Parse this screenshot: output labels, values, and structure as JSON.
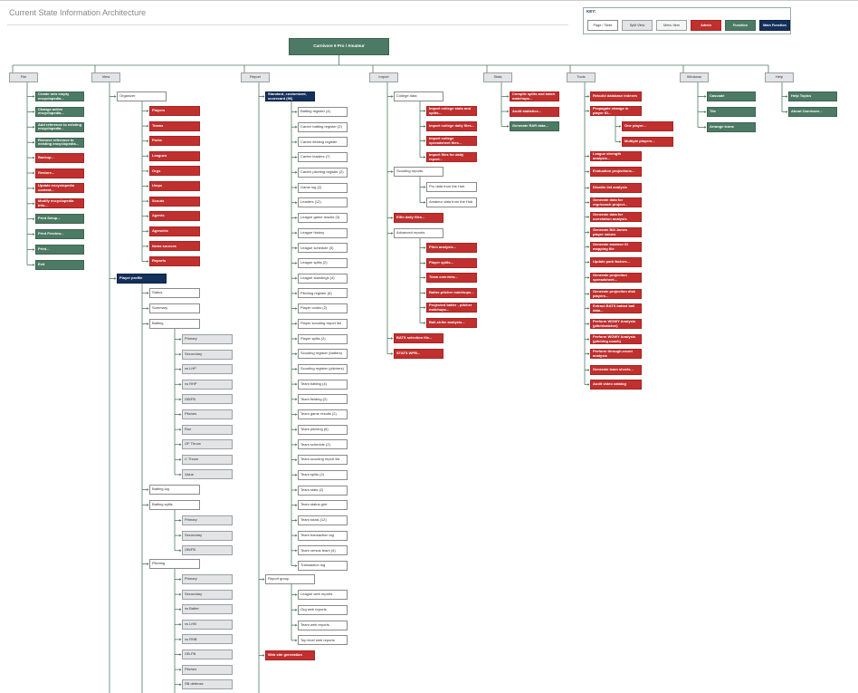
{
  "page": {
    "title": "Current State Information Architecture"
  },
  "legend": {
    "title": "KEY:",
    "items": [
      {
        "label": "Page / Table",
        "kind": "white"
      },
      {
        "label": "Split View",
        "kind": "grey"
      },
      {
        "label": "Menu Item",
        "kind": "grey"
      },
      {
        "label": "Admin",
        "kind": "red"
      },
      {
        "label": "Function",
        "kind": "green"
      },
      {
        "label": "Main Function",
        "kind": "navy"
      }
    ]
  },
  "root": {
    "label": "Carnivore 6 Pro / Amateur"
  },
  "menus": [
    {
      "label": "File",
      "items": [
        {
          "label": "Create new empty encyclopedia...",
          "kind": "green"
        },
        {
          "label": "Change active encyclopedia...",
          "kind": "green"
        },
        {
          "label": "Add reference to existing encyclopedia...",
          "kind": "green"
        },
        {
          "label": "Remove reference to existing encyclopedia...",
          "kind": "green"
        },
        {
          "label": "Backup...",
          "kind": "red"
        },
        {
          "label": "Restore...",
          "kind": "red"
        },
        {
          "label": "Update encyclopedia content...",
          "kind": "red"
        },
        {
          "label": "Modify encyclopedia info...",
          "kind": "red"
        },
        {
          "label": "Print Setup...",
          "kind": "green"
        },
        {
          "label": "Print Preview...",
          "kind": "green"
        },
        {
          "label": "Print...",
          "kind": "green"
        },
        {
          "label": "Exit",
          "kind": "green"
        }
      ]
    },
    {
      "label": "View",
      "items": [
        {
          "label": "Organizer",
          "kind": "white",
          "children": [
            {
              "label": "Players",
              "kind": "red"
            },
            {
              "label": "Teams",
              "kind": "red"
            },
            {
              "label": "Parks",
              "kind": "red"
            },
            {
              "label": "Leagues",
              "kind": "red"
            },
            {
              "label": "Orgs",
              "kind": "red"
            },
            {
              "label": "Umps",
              "kind": "red"
            },
            {
              "label": "Scouts",
              "kind": "red"
            },
            {
              "label": "Agents",
              "kind": "red"
            },
            {
              "label": "Agencies",
              "kind": "red"
            },
            {
              "label": "News sources",
              "kind": "red"
            },
            {
              "label": "Reports",
              "kind": "red"
            }
          ]
        },
        {
          "label": "Player profile",
          "kind": "navy",
          "children": [
            {
              "label": "Status",
              "kind": "white"
            },
            {
              "label": "Summary",
              "kind": "white"
            },
            {
              "label": "Batting",
              "kind": "white",
              "children": [
                {
                  "label": "Primary",
                  "kind": "grey"
                },
                {
                  "label": "Secondary",
                  "kind": "grey"
                },
                {
                  "label": "vs LHP",
                  "kind": "grey"
                },
                {
                  "label": "vs RHP",
                  "kind": "grey"
                },
                {
                  "label": "GB/FB",
                  "kind": "grey"
                },
                {
                  "label": "Pitches",
                  "kind": "grey"
                },
                {
                  "label": "Run",
                  "kind": "grey"
                },
                {
                  "label": "OF Throw",
                  "kind": "grey"
                },
                {
                  "label": "C Throw",
                  "kind": "grey"
                },
                {
                  "label": "Value",
                  "kind": "grey"
                }
              ]
            },
            {
              "label": "Batting log",
              "kind": "white"
            },
            {
              "label": "Batting splits",
              "kind": "white",
              "children": [
                {
                  "label": "Primary",
                  "kind": "grey"
                },
                {
                  "label": "Secondary",
                  "kind": "grey"
                },
                {
                  "label": "GB/FB",
                  "kind": "grey"
                }
              ]
            },
            {
              "label": "Pitching",
              "kind": "white",
              "children": [
                {
                  "label": "Primary",
                  "kind": "grey"
                },
                {
                  "label": "Secondary",
                  "kind": "grey"
                },
                {
                  "label": "vs Batter",
                  "kind": "grey"
                },
                {
                  "label": "vs LHB",
                  "kind": "grey"
                },
                {
                  "label": "vs RHB",
                  "kind": "grey"
                },
                {
                  "label": "GB-FB",
                  "kind": "grey"
                },
                {
                  "label": "Pitches",
                  "kind": "grey"
                },
                {
                  "label": "SB defense",
                  "kind": "grey"
                }
              ]
            }
          ]
        }
      ]
    },
    {
      "label": "Report",
      "items": [
        {
          "label": "Standard, customized, scorecard (56)",
          "kind": "navy",
          "children": [
            {
              "label": "Batting register (4)",
              "kind": "white"
            },
            {
              "label": "Career batting register (2)",
              "kind": "white"
            },
            {
              "label": "Career fielding register",
              "kind": "white"
            },
            {
              "label": "Career leaders (7)",
              "kind": "white"
            },
            {
              "label": "Career pitching register (2)",
              "kind": "white"
            },
            {
              "label": "Game log (2)",
              "kind": "white"
            },
            {
              "label": "Leaders (12)",
              "kind": "white"
            },
            {
              "label": "League game results (3)",
              "kind": "white"
            },
            {
              "label": "League history",
              "kind": "white"
            },
            {
              "label": "League schedule (3)",
              "kind": "white"
            },
            {
              "label": "League splits (2)",
              "kind": "white"
            },
            {
              "label": "League standings (4)",
              "kind": "white"
            },
            {
              "label": "Pitching register (6)",
              "kind": "white"
            },
            {
              "label": "Player codes (2)",
              "kind": "white"
            },
            {
              "label": "Player scouting report list",
              "kind": "white"
            },
            {
              "label": "Player splits (2)",
              "kind": "white"
            },
            {
              "label": "Scouting register (batters)",
              "kind": "white"
            },
            {
              "label": "Scouting register (pitchers)",
              "kind": "white"
            },
            {
              "label": "Team batting (4)",
              "kind": "white"
            },
            {
              "label": "Team fielding (2)",
              "kind": "white"
            },
            {
              "label": "Team game results (2)",
              "kind": "white"
            },
            {
              "label": "Team pitching (6)",
              "kind": "white"
            },
            {
              "label": "Team schedule (2)",
              "kind": "white"
            },
            {
              "label": "Team scouting report list",
              "kind": "white"
            },
            {
              "label": "Team splits (2)",
              "kind": "white"
            },
            {
              "label": "Team stats (2)",
              "kind": "white"
            },
            {
              "label": "Team status grid",
              "kind": "white"
            },
            {
              "label": "Team totals (12)",
              "kind": "white"
            },
            {
              "label": "Team transaction log",
              "kind": "white"
            },
            {
              "label": "Team versus team (4)",
              "kind": "white"
            },
            {
              "label": "Transaction log",
              "kind": "white"
            }
          ]
        },
        {
          "label": "Report group",
          "kind": "white",
          "children": [
            {
              "label": "League web reports",
              "kind": "white"
            },
            {
              "label": "Org web reports",
              "kind": "white"
            },
            {
              "label": "Team web reports",
              "kind": "white"
            },
            {
              "label": "Top level web reports",
              "kind": "white"
            }
          ]
        },
        {
          "label": "Web site generation",
          "kind": "red"
        }
      ]
    },
    {
      "label": "Import",
      "items": [
        {
          "label": "College data",
          "kind": "white",
          "children": [
            {
              "label": "Import college stats and splits...",
              "kind": "red"
            },
            {
              "label": "Import college daily files...",
              "kind": "red"
            },
            {
              "label": "Import college spreadsheet files...",
              "kind": "red"
            },
            {
              "label": "Import files for daily report...",
              "kind": "red"
            }
          ]
        },
        {
          "label": "Scouting reports",
          "kind": "white",
          "children": [
            {
              "label": "Pro data from the Hub",
              "kind": "white"
            },
            {
              "label": "Amateur data from the Hub",
              "kind": "white"
            }
          ]
        },
        {
          "label": "Elfin daily files...",
          "kind": "red"
        },
        {
          "label": "Advanced reports",
          "kind": "white",
          "children": [
            {
              "label": "Pitch analysis...",
              "kind": "red"
            },
            {
              "label": "Player splits...",
              "kind": "red"
            },
            {
              "label": "Team overview...",
              "kind": "red"
            },
            {
              "label": "Batter-pitcher matchups...",
              "kind": "red"
            },
            {
              "label": "Projected batter - pitcher matchups...",
              "kind": "red"
            },
            {
              "label": "Ball-strike analysis...",
              "kind": "red"
            }
          ]
        },
        {
          "label": "BATS selection file...",
          "kind": "red"
        },
        {
          "label": "STATS WPB...",
          "kind": "red"
        }
      ]
    },
    {
      "label": "Stats",
      "items": [
        {
          "label": "Compile splits and batch matchups...",
          "kind": "red"
        },
        {
          "label": "Audit statistics...",
          "kind": "red"
        },
        {
          "label": "Generate RAR data...",
          "kind": "green"
        }
      ]
    },
    {
      "label": "Tools",
      "items": [
        {
          "label": "Rebuild database indexes",
          "kind": "red"
        },
        {
          "label": "Propagate change in player ID...",
          "kind": "red",
          "children": [
            {
              "label": "One player...",
              "kind": "red"
            },
            {
              "label": "Multiple players...",
              "kind": "red"
            }
          ]
        },
        {
          "label": "League strength analysis...",
          "kind": "red"
        },
        {
          "label": "Evaluation projections...",
          "kind": "red"
        },
        {
          "label": "Disable list analysis",
          "kind": "red"
        },
        {
          "label": "Generate data for regr/coach project...",
          "kind": "red"
        },
        {
          "label": "Generate data for correlation analysis",
          "kind": "red"
        },
        {
          "label": "Generate Bill James player values",
          "kind": "red"
        },
        {
          "label": "Generate amateur ID mapping file",
          "kind": "red"
        },
        {
          "label": "Update park factors...",
          "kind": "red"
        },
        {
          "label": "Generate projection spreadsheet...",
          "kind": "red"
        },
        {
          "label": "Generate projection disk players...",
          "kind": "red"
        },
        {
          "label": "Extract BATS batted ball data...",
          "kind": "red"
        },
        {
          "label": "Perform WOWY Analysis (pitch/catcher)",
          "kind": "red"
        },
        {
          "label": "Perform WOWY Analysis (pitching coach)",
          "kind": "red"
        },
        {
          "label": "Perform through-count analysis",
          "kind": "red"
        },
        {
          "label": "Generate team sheets...",
          "kind": "red"
        },
        {
          "label": "Audit video catalog",
          "kind": "red"
        }
      ]
    },
    {
      "label": "Windows",
      "items": [
        {
          "label": "Cascade",
          "kind": "green"
        },
        {
          "label": "Tile",
          "kind": "green"
        },
        {
          "label": "Arrange Icons",
          "kind": "green"
        }
      ]
    },
    {
      "label": "Help",
      "items": [
        {
          "label": "Help Topics",
          "kind": "green"
        },
        {
          "label": "About Carnivore...",
          "kind": "green"
        }
      ]
    }
  ]
}
